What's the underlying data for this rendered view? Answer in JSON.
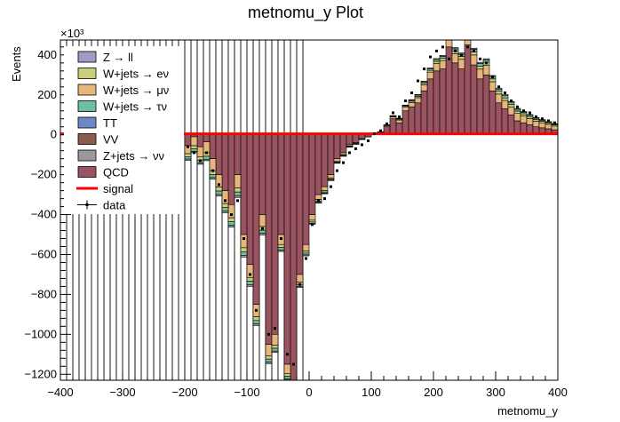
{
  "chart_data": {
    "type": "histogram-stack",
    "title": "metnomu_y Plot",
    "xlabel": "metnomu_y",
    "ylabel": "Events",
    "y_scale_label": "×10³",
    "xlim": [
      -400,
      400
    ],
    "ylim": [
      -1230,
      475
    ],
    "x_ticks": [
      -400,
      -300,
      -200,
      -100,
      0,
      100,
      200,
      300,
      400
    ],
    "x_tick_labels": [
      "−400",
      "−300",
      "−200",
      "−100",
      "0",
      "100",
      "200",
      "300",
      "400"
    ],
    "y_ticks": [
      -1200,
      -1000,
      -800,
      -600,
      -400,
      -200,
      0,
      200,
      400
    ],
    "y_tick_labels": [
      "−1200",
      "−1000",
      "−800",
      "−600",
      "−400",
      "−200",
      "0",
      "200",
      "400"
    ],
    "bin_edges_start": -400,
    "bin_width": 10,
    "legend": [
      {
        "label": "Z → ll",
        "color": "#a39bc6",
        "style": "box"
      },
      {
        "label": "W+jets → eν",
        "color": "#cbcd79",
        "style": "box"
      },
      {
        "label": "W+jets → μν",
        "color": "#e6b67c",
        "style": "box"
      },
      {
        "label": "W+jets → τν",
        "color": "#6cc1a0",
        "style": "box"
      },
      {
        "label": "TT",
        "color": "#6d88c9",
        "style": "box"
      },
      {
        "label": "VV",
        "color": "#8a5b4c",
        "style": "box"
      },
      {
        "label": "Z+jets → νν",
        "color": "#9a9a9a",
        "style": "box"
      },
      {
        "label": "QCD",
        "color": "#9a5360",
        "style": "box"
      },
      {
        "label": "signal",
        "color": "#ff0000",
        "style": "line"
      },
      {
        "label": "data",
        "color": "#000000",
        "style": "marker"
      }
    ],
    "series": [
      {
        "name": "QCD",
        "color": "#9a5360",
        "bins_from": -200,
        "values": [
          -55,
          -10,
          -60,
          -35,
          -120,
          -200,
          -280,
          -350,
          -200,
          -500,
          -650,
          -850,
          -400,
          -1050,
          -1000,
          -500,
          -1150,
          -1250,
          -700,
          -550,
          -400,
          -300,
          -260,
          -200,
          -120,
          -90,
          -50,
          -40,
          -20,
          -10,
          0,
          10,
          40,
          80,
          60,
          120,
          140,
          160,
          220,
          280,
          320,
          330,
          440,
          360,
          330,
          450,
          350,
          280,
          300,
          220,
          160,
          130,
          100,
          70,
          60,
          50,
          40,
          35,
          30,
          25,
          20,
          18,
          15,
          12,
          10,
          9,
          8,
          7,
          6,
          5,
          5,
          4,
          3,
          3,
          2,
          2,
          2,
          1,
          1,
          1
        ]
      },
      {
        "name": "W+jets → μν",
        "color": "#e6b67c",
        "bins_from": -200,
        "values": [
          -40,
          -45,
          -50,
          -55,
          -60,
          -62,
          -65,
          -66,
          -67,
          -66,
          -65,
          -62,
          -60,
          -57,
          -54,
          -50,
          -46,
          -42,
          -38,
          -33,
          -28,
          -24,
          -20,
          -16,
          -12,
          -9,
          -6,
          -4,
          -2,
          -1,
          1,
          3,
          6,
          10,
          14,
          18,
          22,
          26,
          30,
          34,
          38,
          42,
          44,
          46,
          48,
          50,
          50,
          49,
          48,
          46,
          44,
          42,
          40,
          37,
          34,
          31,
          28,
          25,
          22,
          19,
          16,
          14,
          12,
          10,
          8,
          7,
          6,
          5,
          4,
          3,
          3,
          2,
          2,
          2,
          1,
          1,
          1,
          1,
          1,
          1
        ]
      },
      {
        "name": "W+jets → eν",
        "color": "#cbcd79",
        "bins_from": -200,
        "values": [
          -15,
          -16,
          -17,
          -18,
          -19,
          -20,
          -20,
          -20,
          -20,
          -20,
          -19,
          -19,
          -18,
          -17,
          -16,
          -15,
          -14,
          -13,
          -12,
          -10,
          -9,
          -8,
          -7,
          -6,
          -5,
          -4,
          -3,
          -2,
          -1,
          0,
          0,
          1,
          2,
          3,
          4,
          5,
          6,
          7,
          8,
          9,
          10,
          11,
          12,
          13,
          14,
          15,
          15,
          15,
          15,
          14,
          14,
          13,
          13,
          12,
          11,
          10,
          9,
          8,
          7,
          6,
          5,
          5,
          4,
          4,
          3,
          3,
          2,
          2,
          2,
          1,
          1,
          1,
          1,
          1,
          1,
          1,
          1,
          1,
          1,
          1
        ]
      },
      {
        "name": "W+jets → τν",
        "color": "#6cc1a0",
        "bins_from": -200,
        "values": [
          -12,
          -13,
          -14,
          -15,
          -16,
          -17,
          -18,
          -18,
          -18,
          -18,
          -17,
          -17,
          -16,
          -15,
          -14,
          -13,
          -12,
          -11,
          -10,
          -9,
          -8,
          -7,
          -6,
          -5,
          -4,
          -3,
          -2,
          -1,
          -1,
          0,
          0,
          1,
          1,
          2,
          3,
          4,
          5,
          6,
          7,
          8,
          9,
          10,
          11,
          12,
          12,
          13,
          13,
          13,
          12,
          12,
          11,
          11,
          10,
          9,
          8,
          7,
          6,
          5,
          5,
          4,
          4,
          3,
          3,
          2,
          2,
          2,
          1,
          1,
          1,
          1,
          1,
          1,
          1,
          1,
          1,
          1,
          1,
          1,
          1,
          1
        ]
      },
      {
        "name": "Z+jets → νν",
        "color": "#9a9a9a",
        "bins_from": -200,
        "values": [
          -6,
          -6,
          -7,
          -7,
          -8,
          -8,
          -8,
          -9,
          -9,
          -9,
          -9,
          -8,
          -8,
          -8,
          -7,
          -7,
          -6,
          -6,
          -5,
          -5,
          -4,
          -4,
          -3,
          -3,
          -2,
          -2,
          -1,
          -1,
          0,
          0,
          0,
          0,
          1,
          1,
          2,
          2,
          3,
          3,
          4,
          4,
          5,
          5,
          6,
          6,
          6,
          6,
          6,
          6,
          6,
          5,
          5,
          5,
          4,
          4,
          4,
          3,
          3,
          3,
          2,
          2,
          2,
          2,
          1,
          1,
          1,
          1,
          1,
          1,
          1,
          1,
          0,
          0,
          0,
          0,
          0,
          0,
          0,
          0,
          0,
          0
        ]
      }
    ],
    "signal": {
      "name": "signal",
      "color": "#ff0000",
      "value_level": 5
    },
    "data": {
      "name": "data",
      "bins_from": -200,
      "values": [
        -60,
        -90,
        -130,
        -90,
        -180,
        -250,
        -330,
        -400,
        -330,
        -520,
        -700,
        -880,
        -470,
        -1000,
        -970,
        -520,
        -1100,
        -1150,
        -750,
        -620,
        -450,
        -330,
        -320,
        -260,
        -180,
        -140,
        -90,
        -70,
        -50,
        -30,
        5,
        20,
        55,
        110,
        90,
        170,
        210,
        270,
        330,
        390,
        420,
        440,
        380,
        420,
        400,
        440,
        420,
        380,
        360,
        290,
        240,
        210,
        170,
        140,
        120,
        110,
        90,
        80,
        70,
        60,
        50,
        40,
        32,
        26,
        22,
        20,
        18,
        16,
        14,
        12,
        10,
        8,
        6,
        5,
        4,
        3,
        3,
        2,
        2,
        1
      ]
    }
  }
}
